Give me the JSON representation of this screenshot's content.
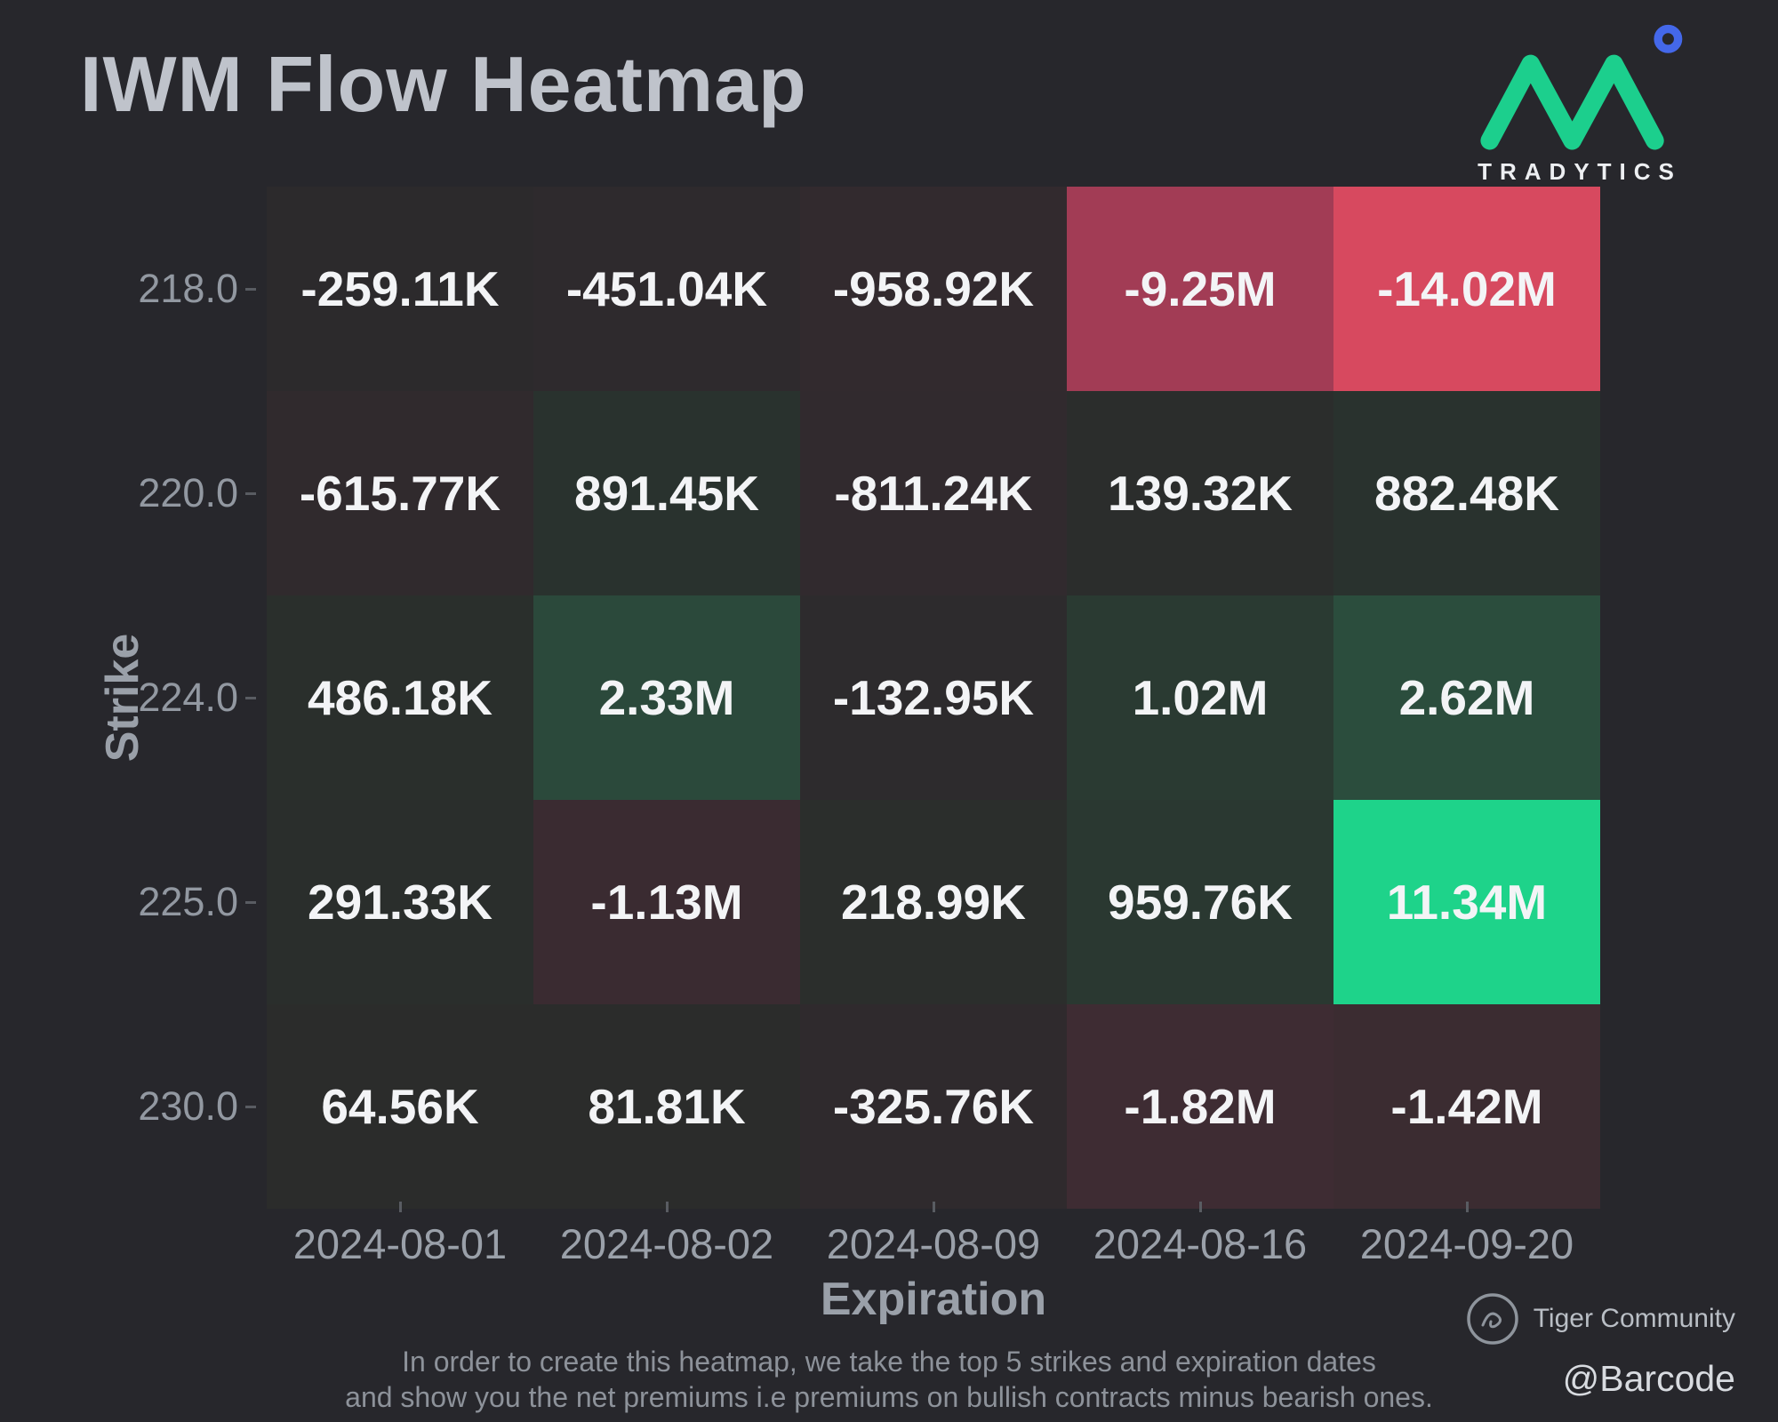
{
  "title": "IWM Flow Heatmap",
  "brand": {
    "wordmark": "TRADYTICS",
    "accent_green": "#1ccf8d",
    "accent_blue": "#4468ea"
  },
  "chart_data": {
    "type": "heatmap",
    "title": "IWM Flow Heatmap",
    "xlabel": "Expiration",
    "ylabel": "Strike",
    "legend": "none",
    "grid": false,
    "columns": [
      "2024-08-01",
      "2024-08-02",
      "2024-08-09",
      "2024-08-16",
      "2024-09-20"
    ],
    "rows": [
      {
        "strike": "218.0",
        "cells": [
          {
            "label": "-259.11K",
            "value": -259110,
            "color": "#2c2a2c"
          },
          {
            "label": "-451.04K",
            "value": -451040,
            "color": "#2e2a2d"
          },
          {
            "label": "-958.92K",
            "value": -958920,
            "color": "#322a2e"
          },
          {
            "label": "-9.25M",
            "value": -9250000,
            "color": "#a23c55"
          },
          {
            "label": "-14.02M",
            "value": -14020000,
            "color": "#d7495f"
          }
        ]
      },
      {
        "strike": "220.0",
        "cells": [
          {
            "label": "-615.77K",
            "value": -615770,
            "color": "#302a2d"
          },
          {
            "label": "891.45K",
            "value": 891450,
            "color": "#29322e"
          },
          {
            "label": "-811.24K",
            "value": -811240,
            "color": "#312a2e"
          },
          {
            "label": "139.32K",
            "value": 139320,
            "color": "#2b2d2c"
          },
          {
            "label": "882.48K",
            "value": 882480,
            "color": "#29322e"
          }
        ]
      },
      {
        "strike": "224.0",
        "cells": [
          {
            "label": "486.18K",
            "value": 486180,
            "color": "#2a2f2c"
          },
          {
            "label": "2.33M",
            "value": 2330000,
            "color": "#2b493b"
          },
          {
            "label": "-132.95K",
            "value": -132950,
            "color": "#2d2b2d"
          },
          {
            "label": "1.02M",
            "value": 1020000,
            "color": "#2a3a32"
          },
          {
            "label": "2.62M",
            "value": 2620000,
            "color": "#2b4d3d"
          }
        ]
      },
      {
        "strike": "225.0",
        "cells": [
          {
            "label": "291.33K",
            "value": 291330,
            "color": "#2a2e2c"
          },
          {
            "label": "-1.13M",
            "value": -1130000,
            "color": "#3a2b31"
          },
          {
            "label": "218.99K",
            "value": 218990,
            "color": "#2b2e2c"
          },
          {
            "label": "959.76K",
            "value": 959760,
            "color": "#2a3831"
          },
          {
            "label": "11.34M",
            "value": 11340000,
            "color": "#1ed38a"
          }
        ]
      },
      {
        "strike": "230.0",
        "cells": [
          {
            "label": "64.56K",
            "value": 64560,
            "color": "#2b2c2b"
          },
          {
            "label": "81.81K",
            "value": 81810,
            "color": "#2b2c2b"
          },
          {
            "label": "-325.76K",
            "value": -325760,
            "color": "#2f2a2d"
          },
          {
            "label": "-1.82M",
            "value": -1820000,
            "color": "#3e2c33"
          },
          {
            "label": "-1.42M",
            "value": -1420000,
            "color": "#3b2c31"
          }
        ]
      }
    ],
    "colorscale": {
      "positive": "#1ed38a",
      "negative": "#d7495f",
      "neutral": "#2b2b2e"
    }
  },
  "footer": {
    "note_line1": "In order to create this heatmap, we take the top 5 strikes and expiration dates",
    "note_line2": "and show you the net premiums i.e premiums on bullish contracts minus bearish ones.",
    "community": "Tiger Community",
    "handle": "@Barcode"
  }
}
